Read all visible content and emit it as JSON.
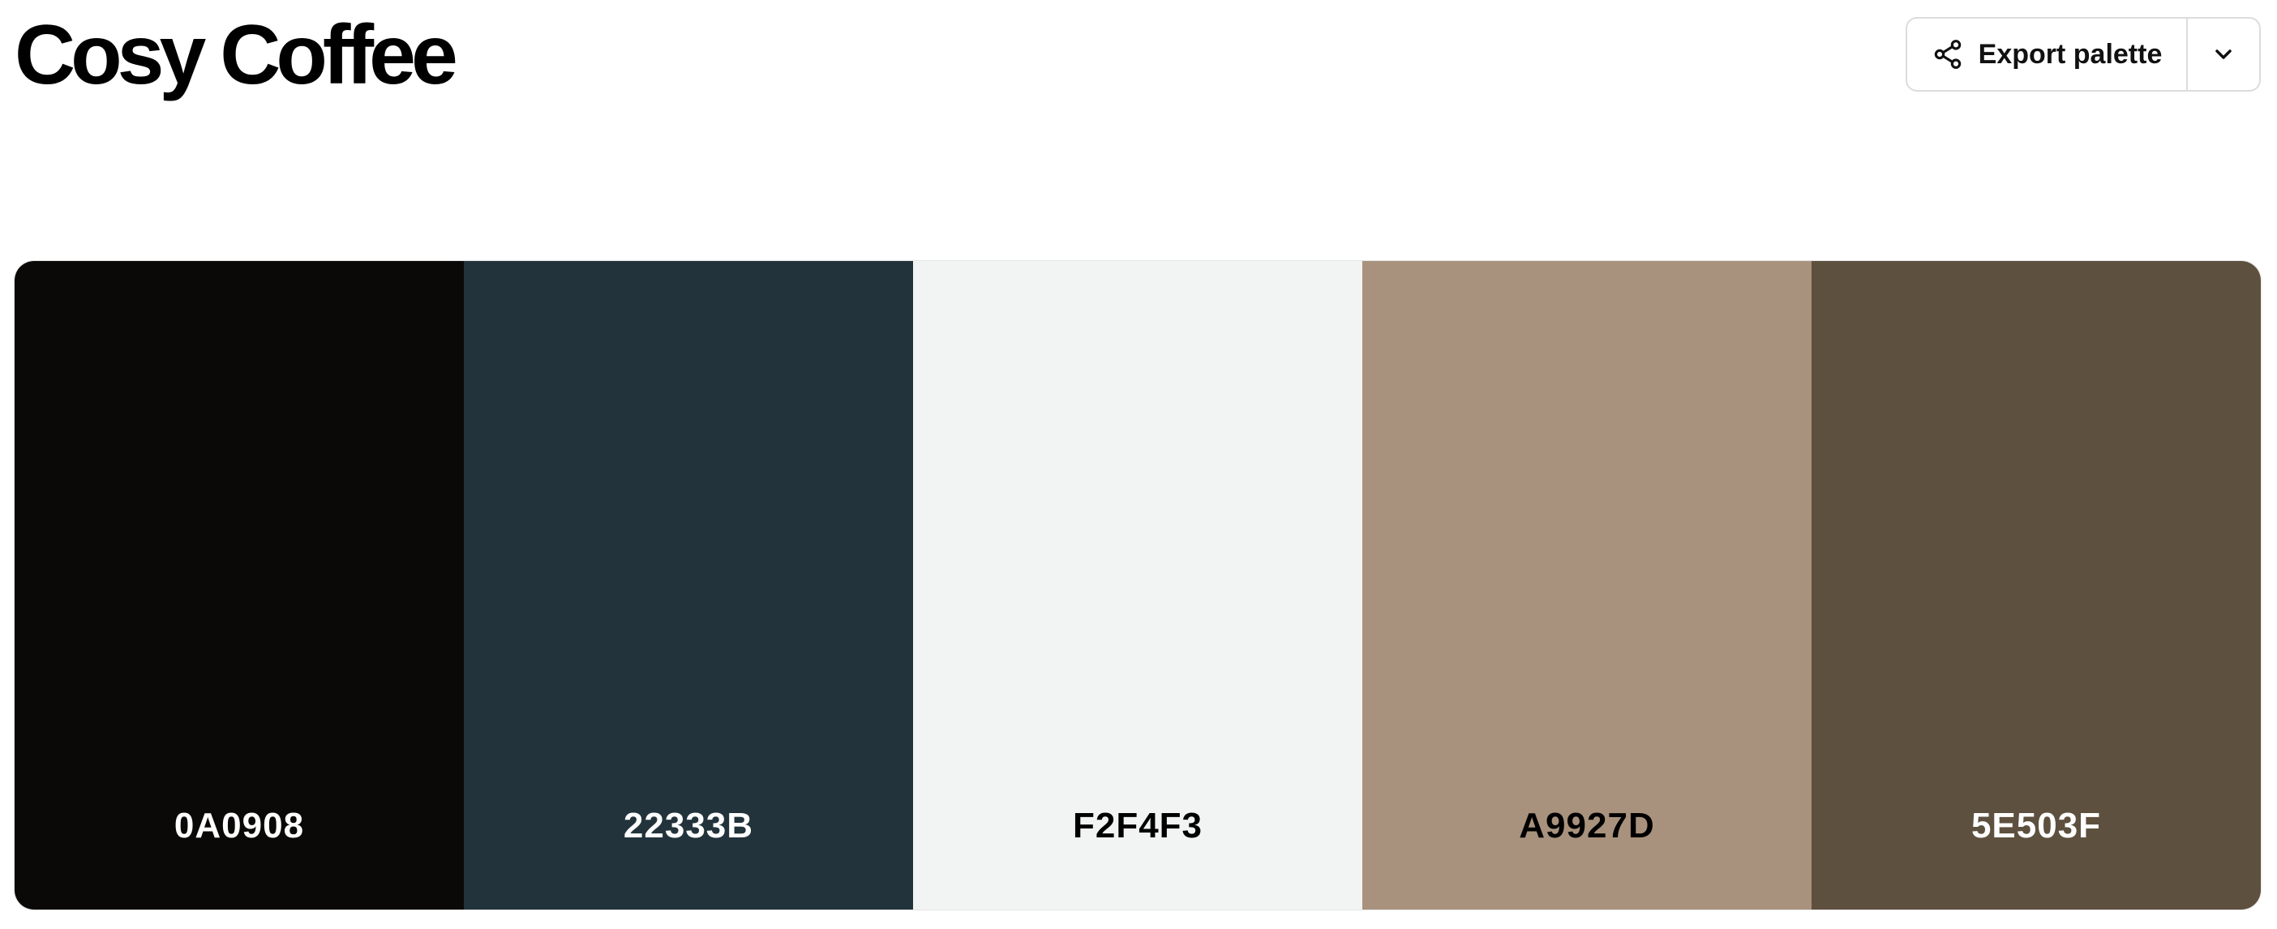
{
  "header": {
    "title": "Cosy Coffee",
    "export_label": "Export palette",
    "export_icon": "share-icon",
    "dropdown_icon": "chevron-down-icon"
  },
  "palette": {
    "swatches": [
      {
        "hex": "0A0908",
        "color": "#0A0908",
        "text_color": "#FFFFFF"
      },
      {
        "hex": "22333B",
        "color": "#22333B",
        "text_color": "#FFFFFF"
      },
      {
        "hex": "F2F4F3",
        "color": "#F2F4F3",
        "text_color": "#000000"
      },
      {
        "hex": "A9927D",
        "color": "#A9927D",
        "text_color": "#000000"
      },
      {
        "hex": "5E503F",
        "color": "#5E503F",
        "text_color": "#FFFFFF"
      }
    ]
  }
}
